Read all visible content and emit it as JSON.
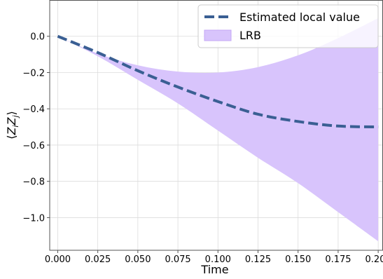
{
  "chart_data": {
    "type": "line",
    "xlabel": "Time",
    "ylabel": "⟨Z_i Z_j⟩",
    "xlim": [
      -0.005,
      0.203
    ],
    "ylim": [
      -1.18,
      0.2
    ],
    "x_ticks": [
      0.0,
      0.025,
      0.05,
      0.075,
      0.1,
      0.125,
      0.15,
      0.175,
      0.2
    ],
    "x_tick_labels": [
      "0.000",
      "0.025",
      "0.050",
      "0.075",
      "0.100",
      "0.125",
      "0.150",
      "0.175",
      "0.200"
    ],
    "y_ticks": [
      0.0,
      -0.2,
      -0.4,
      -0.6,
      -0.8,
      -1.0
    ],
    "y_tick_labels": [
      "0.0",
      "−0.2",
      "−0.4",
      "−0.6",
      "−0.8",
      "−1.0"
    ],
    "grid": true,
    "legend_position": "top-right",
    "series": [
      {
        "name": "Estimated local value",
        "style": "dashed-line",
        "color": "#3a5f93",
        "x": [
          0.0,
          0.025,
          0.05,
          0.075,
          0.1,
          0.125,
          0.15,
          0.175,
          0.2
        ],
        "y": [
          0.0,
          -0.09,
          -0.19,
          -0.28,
          -0.36,
          -0.43,
          -0.47,
          -0.495,
          -0.5
        ]
      },
      {
        "name": "LRB",
        "style": "band",
        "color": "#d8c4fc",
        "x": [
          0.0,
          0.025,
          0.05,
          0.075,
          0.1,
          0.125,
          0.15,
          0.175,
          0.2
        ],
        "upper": [
          0.0,
          -0.095,
          -0.16,
          -0.195,
          -0.2,
          -0.17,
          -0.105,
          -0.01,
          0.1
        ],
        "lower": [
          0.0,
          -0.11,
          -0.24,
          -0.37,
          -0.52,
          -0.67,
          -0.81,
          -0.97,
          -1.13
        ]
      }
    ]
  }
}
